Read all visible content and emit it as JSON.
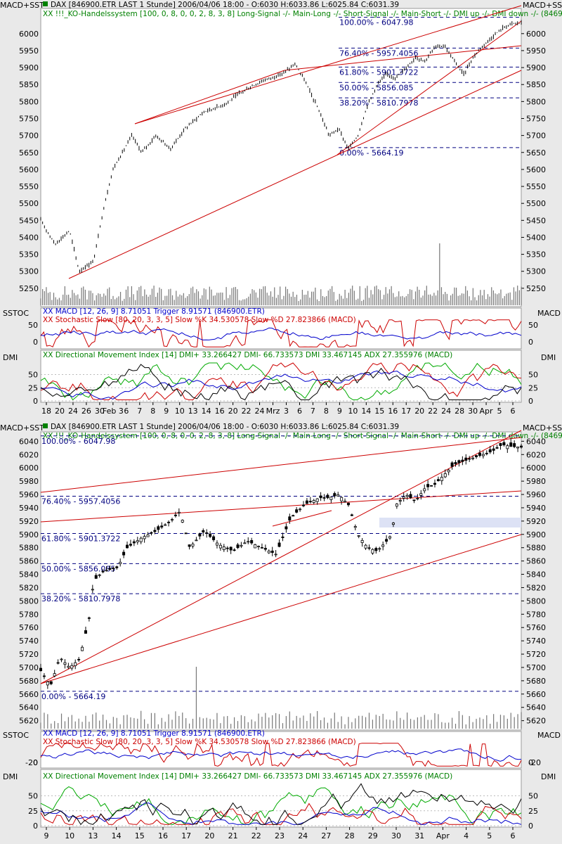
{
  "side_labels": {
    "main_left": "MACD+SST",
    "main_right": "MACD+SST",
    "stoch_left": "SSTOC",
    "stoch_right": "MACD",
    "dmi_left": "DMI",
    "dmi_right": "DMI"
  },
  "colors": {
    "price": "#000000",
    "trend": "#cc0000",
    "fib": "#000080",
    "macd": "#0000cc",
    "stoch": "#cc0000",
    "dmi_plus": "#00aa00",
    "dmi_minus": "#cc0000",
    "adx": "#0000cc",
    "dmi": "#000000",
    "header_green": "#008000",
    "header_blue": "#000080"
  },
  "chart_data": [
    {
      "type": "candlestick",
      "title": "DAX [846900.ETR LAST 1 Stunde] 2006/04/06 18:00 - O:6030 H:6033.86 L:6025.84 C:6031.39",
      "subtitle": "XX !!!_KO-Handelssystem [100, 0, 8, 0, 0, 2, 8, 3, 8] Long-Signal -/- Main-Long -/- Short-Signal -/- Main-Short -/- DMI up -/- DMI down -/- (846900",
      "ylim": [
        5200,
        6070
      ],
      "y_ticks": [
        "6000",
        "5950",
        "5900",
        "5850",
        "5800",
        "5750",
        "5700",
        "5650",
        "5600",
        "5550",
        "5500",
        "5450",
        "5400",
        "5350",
        "5300",
        "5250"
      ],
      "x_ticks": [
        "18",
        "20",
        "24",
        "26",
        "30",
        "Feb 3",
        "6",
        "7",
        "8",
        "9",
        "10",
        "13",
        "14",
        "16",
        "20",
        "22",
        "24",
        "Mrz",
        "3",
        "6",
        "7",
        "8",
        "9",
        "10",
        "14",
        "15",
        "16",
        "17",
        "20",
        "22",
        "24",
        "28",
        "30",
        "Apr",
        "5",
        "6"
      ],
      "fib_levels": [
        {
          "label": "100.00% - 6047.98",
          "value": 6047.98
        },
        {
          "label": "76.40% - 5957.4056",
          "value": 5957.4056
        },
        {
          "label": "61.80% - 5901.3722",
          "value": 5901.3722
        },
        {
          "label": "50.00% - 5856.085",
          "value": 5856.085
        },
        {
          "label": "38.20% - 5810.7978",
          "value": 5810.7978
        },
        {
          "label": "0.00% - 5664.19",
          "value": 5664.19
        }
      ],
      "price_path": [
        [
          0,
          5450
        ],
        [
          0.03,
          5380
        ],
        [
          0.06,
          5420
        ],
        [
          0.08,
          5300
        ],
        [
          0.11,
          5330
        ],
        [
          0.13,
          5480
        ],
        [
          0.15,
          5600
        ],
        [
          0.19,
          5700
        ],
        [
          0.21,
          5650
        ],
        [
          0.24,
          5700
        ],
        [
          0.27,
          5660
        ],
        [
          0.3,
          5720
        ],
        [
          0.34,
          5770
        ],
        [
          0.38,
          5790
        ],
        [
          0.42,
          5830
        ],
        [
          0.46,
          5860
        ],
        [
          0.5,
          5880
        ],
        [
          0.53,
          5910
        ],
        [
          0.55,
          5860
        ],
        [
          0.58,
          5770
        ],
        [
          0.6,
          5700
        ],
        [
          0.62,
          5720
        ],
        [
          0.64,
          5660
        ],
        [
          0.66,
          5700
        ],
        [
          0.68,
          5790
        ],
        [
          0.7,
          5850
        ],
        [
          0.72,
          5880
        ],
        [
          0.74,
          5870
        ],
        [
          0.76,
          5900
        ],
        [
          0.78,
          5930
        ],
        [
          0.8,
          5920
        ],
        [
          0.82,
          5960
        ],
        [
          0.84,
          5965
        ],
        [
          0.86,
          5920
        ],
        [
          0.88,
          5880
        ],
        [
          0.9,
          5930
        ],
        [
          0.92,
          5965
        ],
        [
          0.94,
          5990
        ],
        [
          0.96,
          6015
        ],
        [
          0.98,
          6030
        ],
        [
          1,
          6031
        ]
      ],
      "stoch_panel": {
        "macd_label": "XX MACD [12, 26, 9] 8.71051 Trigger 8.91571 (846900.ETR)",
        "stoch_label": "XX Stochastic Slow [80, 20, 3, 3, 5] Slow %K 34.530578 Slow %D 27.823866 (MACD)",
        "y_ticks": [
          "50",
          "0"
        ]
      },
      "dmi_panel": {
        "label": "XX Directional Movement Index [14] DMI+ 33.266427 DMI- 66.733573 DMI 33.467145 ADX 27.355976 (MACD)",
        "y_ticks": [
          "50",
          "25",
          "0"
        ]
      }
    },
    {
      "type": "candlestick",
      "title": "DAX [846900.ETR LAST 1 Stunde] 2006/04/06 18:00 - O:6030 H:6033.86 L:6025.84 C:6031.39",
      "subtitle": "XX !!!_KO-Handelssystem [100, 0, 8, 0, 0, 2, 8, 3, 8] Long-Signal -/- Main-Long -/- Short-Signal -/- Main-Short -/- DMI up -/- DMI down -/- (846900",
      "ylim": [
        5608,
        6052
      ],
      "y_ticks": [
        "6040",
        "6020",
        "6000",
        "5980",
        "5960",
        "5940",
        "5920",
        "5900",
        "5880",
        "5860",
        "5840",
        "5820",
        "5800",
        "5780",
        "5760",
        "5740",
        "5720",
        "5700",
        "5680",
        "5660",
        "5640",
        "5620"
      ],
      "x_ticks": [
        "9",
        "10",
        "13",
        "14",
        "15",
        "16",
        "17",
        "20",
        "21",
        "22",
        "23",
        "24",
        "27",
        "28",
        "29",
        "30",
        "31",
        "Apr",
        "4",
        "5",
        "6"
      ],
      "fib_levels": [
        {
          "label": "100.00% - 6047.98",
          "value": 6047.98
        },
        {
          "label": "76.40% - 5957.4056",
          "value": 5957.4056
        },
        {
          "label": "61.80% - 5901.3722",
          "value": 5901.3722
        },
        {
          "label": "50.00% - 5856.085",
          "value": 5856.085
        },
        {
          "label": "38.20% - 5810.7978",
          "value": 5810.7978
        },
        {
          "label": "0.00% - 5664.19",
          "value": 5664.19
        }
      ],
      "price_path": [
        [
          0,
          5695
        ],
        [
          0.02,
          5672
        ],
        [
          0.04,
          5715
        ],
        [
          0.06,
          5700
        ],
        [
          0.08,
          5712
        ],
        [
          0.1,
          5770
        ],
        [
          0.11,
          5830
        ],
        [
          0.13,
          5845
        ],
        [
          0.16,
          5850
        ],
        [
          0.18,
          5880
        ],
        [
          0.21,
          5895
        ],
        [
          0.24,
          5905
        ],
        [
          0.27,
          5920
        ],
        [
          0.29,
          5935
        ],
        [
          0.31,
          5880
        ],
        [
          0.34,
          5905
        ],
        [
          0.37,
          5885
        ],
        [
          0.4,
          5875
        ],
        [
          0.43,
          5890
        ],
        [
          0.46,
          5880
        ],
        [
          0.49,
          5870
        ],
        [
          0.52,
          5925
        ],
        [
          0.55,
          5945
        ],
        [
          0.58,
          5955
        ],
        [
          0.6,
          5955
        ],
        [
          0.62,
          5960
        ],
        [
          0.64,
          5945
        ],
        [
          0.66,
          5900
        ],
        [
          0.68,
          5880
        ],
        [
          0.7,
          5875
        ],
        [
          0.72,
          5890
        ],
        [
          0.73,
          5900
        ],
        [
          0.74,
          5945
        ],
        [
          0.76,
          5960
        ],
        [
          0.78,
          5950
        ],
        [
          0.8,
          5970
        ],
        [
          0.82,
          5975
        ],
        [
          0.84,
          5990
        ],
        [
          0.86,
          6005
        ],
        [
          0.88,
          6010
        ],
        [
          0.9,
          6015
        ],
        [
          0.92,
          6020
        ],
        [
          0.94,
          6025
        ],
        [
          0.96,
          6035
        ],
        [
          0.98,
          6032
        ],
        [
          1,
          6031
        ]
      ],
      "stoch_panel": {
        "macd_label": "XX MACD [12, 26, 9] 8.71051 Trigger 8.91571 (846900.ETR)",
        "stoch_label": "XX Stochastic Slow [80, 20, 3, 3, 5] Slow %K 34.530578 Slow %D 27.823866 (MACD)",
        "y_ticks": [
          "0",
          "-20"
        ]
      },
      "dmi_panel": {
        "label": "XX Directional Movement Index [14] DMI+ 33.266427 DMI- 66.733573 DMI 33.467145 ADX 27.355976 (MACD)",
        "y_ticks": [
          "50",
          "25",
          "0"
        ]
      }
    }
  ]
}
